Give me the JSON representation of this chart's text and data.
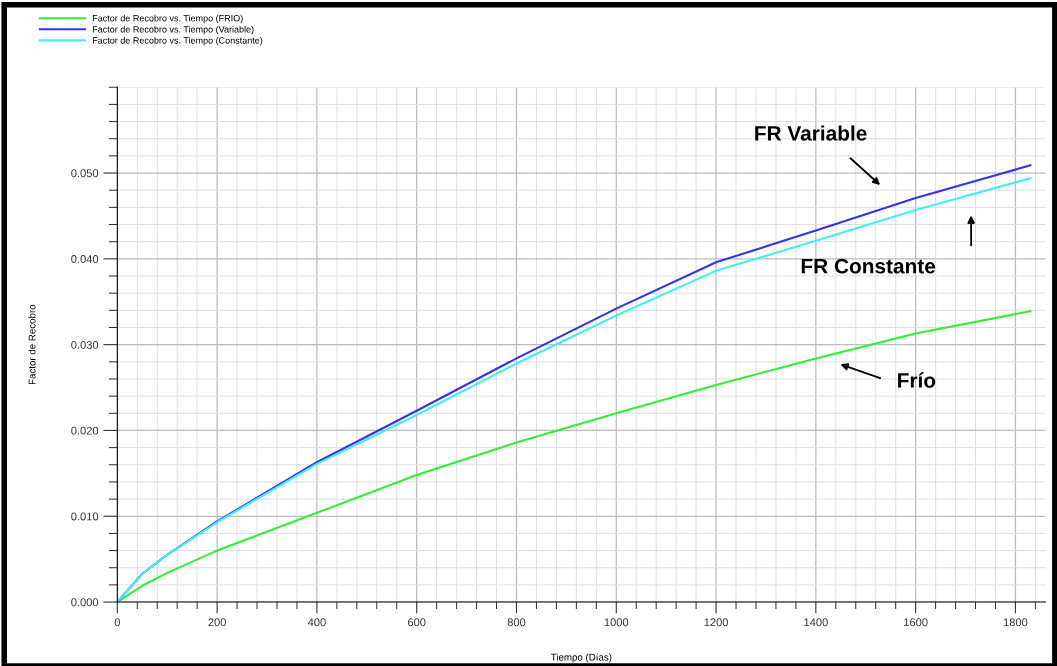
{
  "chart_data": {
    "type": "line",
    "xlabel": "Tiempo (Días)",
    "ylabel": "Factor de Recobro",
    "x": [
      0,
      50,
      100,
      200,
      400,
      600,
      800,
      1000,
      1200,
      1400,
      1600,
      1830
    ],
    "series": [
      {
        "name": "Factor de Recobro vs. Tiempo (FRIO)",
        "color": "#33ee33",
        "values": [
          0,
          0.0019,
          0.0034,
          0.006,
          0.0104,
          0.0148,
          0.0186,
          0.022,
          0.0253,
          0.0284,
          0.0313,
          0.0339
        ]
      },
      {
        "name": "Factor de Recobro vs. Tiempo (Variable)",
        "color": "#3333ee",
        "values": [
          0,
          0.0033,
          0.0055,
          0.0094,
          0.0163,
          0.0223,
          0.0284,
          0.0342,
          0.0396,
          0.0433,
          0.0471,
          0.0509
        ]
      },
      {
        "name": "Factor de Recobro vs. Tiempo (Constante)",
        "color": "#44eeee",
        "values": [
          0,
          0.0033,
          0.0055,
          0.0093,
          0.0161,
          0.0218,
          0.0278,
          0.0334,
          0.0386,
          0.0421,
          0.0457,
          0.0494
        ]
      }
    ],
    "xlim": [
      0,
      1860
    ],
    "ylim": [
      0,
      0.06
    ],
    "xticks": [
      0,
      200,
      400,
      600,
      800,
      1000,
      1200,
      1400,
      1600,
      1800
    ],
    "yticks": [
      {
        "value": 0,
        "label": "0.000"
      },
      {
        "value": 0.01,
        "label": "0.010"
      },
      {
        "value": 0.02,
        "label": "0.020"
      },
      {
        "value": 0.03,
        "label": "0.030"
      },
      {
        "value": 0.04,
        "label": "0.040"
      },
      {
        "value": 0.05,
        "label": "0.050"
      }
    ],
    "annotations": [
      "FR Variable",
      "FR Constante",
      "Frío"
    ],
    "grid": true,
    "legend": "top left",
    "marker": "none",
    "line_style": "solid"
  }
}
